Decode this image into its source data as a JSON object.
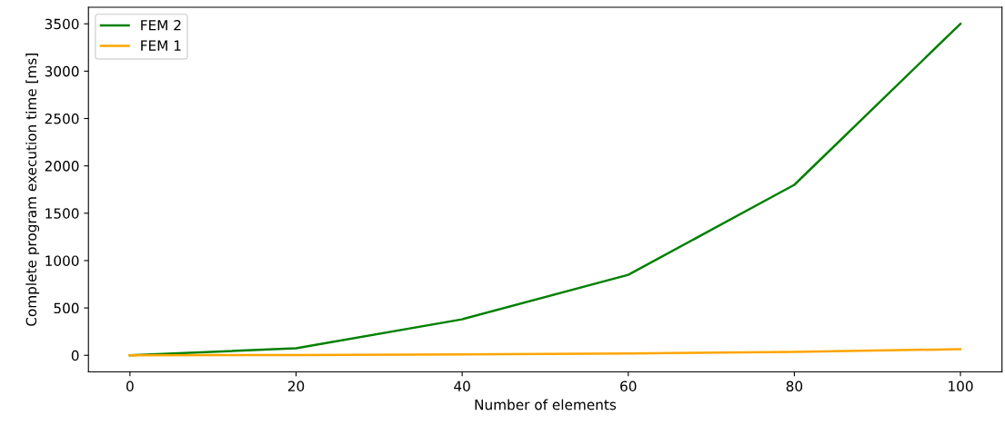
{
  "chart_data": {
    "type": "line",
    "xlabel": "Number of elements",
    "ylabel": "Complete program execution time [ms]",
    "x": [
      0,
      20,
      40,
      60,
      80,
      100
    ],
    "series": [
      {
        "name": "FEM 2",
        "color": "#008000",
        "values": [
          0,
          75,
          380,
          850,
          1800,
          3500
        ]
      },
      {
        "name": "FEM 1",
        "color": "#ffa500",
        "values": [
          0,
          3,
          10,
          20,
          35,
          65
        ]
      }
    ],
    "xlim": [
      -5,
      105
    ],
    "xticks": [
      0,
      20,
      40,
      60,
      80,
      100
    ],
    "ylim": [
      -175,
      3675
    ],
    "yticks": [
      0,
      500,
      1000,
      1500,
      2000,
      2500,
      3000,
      3500
    ],
    "legend": "top left",
    "grid": false
  }
}
